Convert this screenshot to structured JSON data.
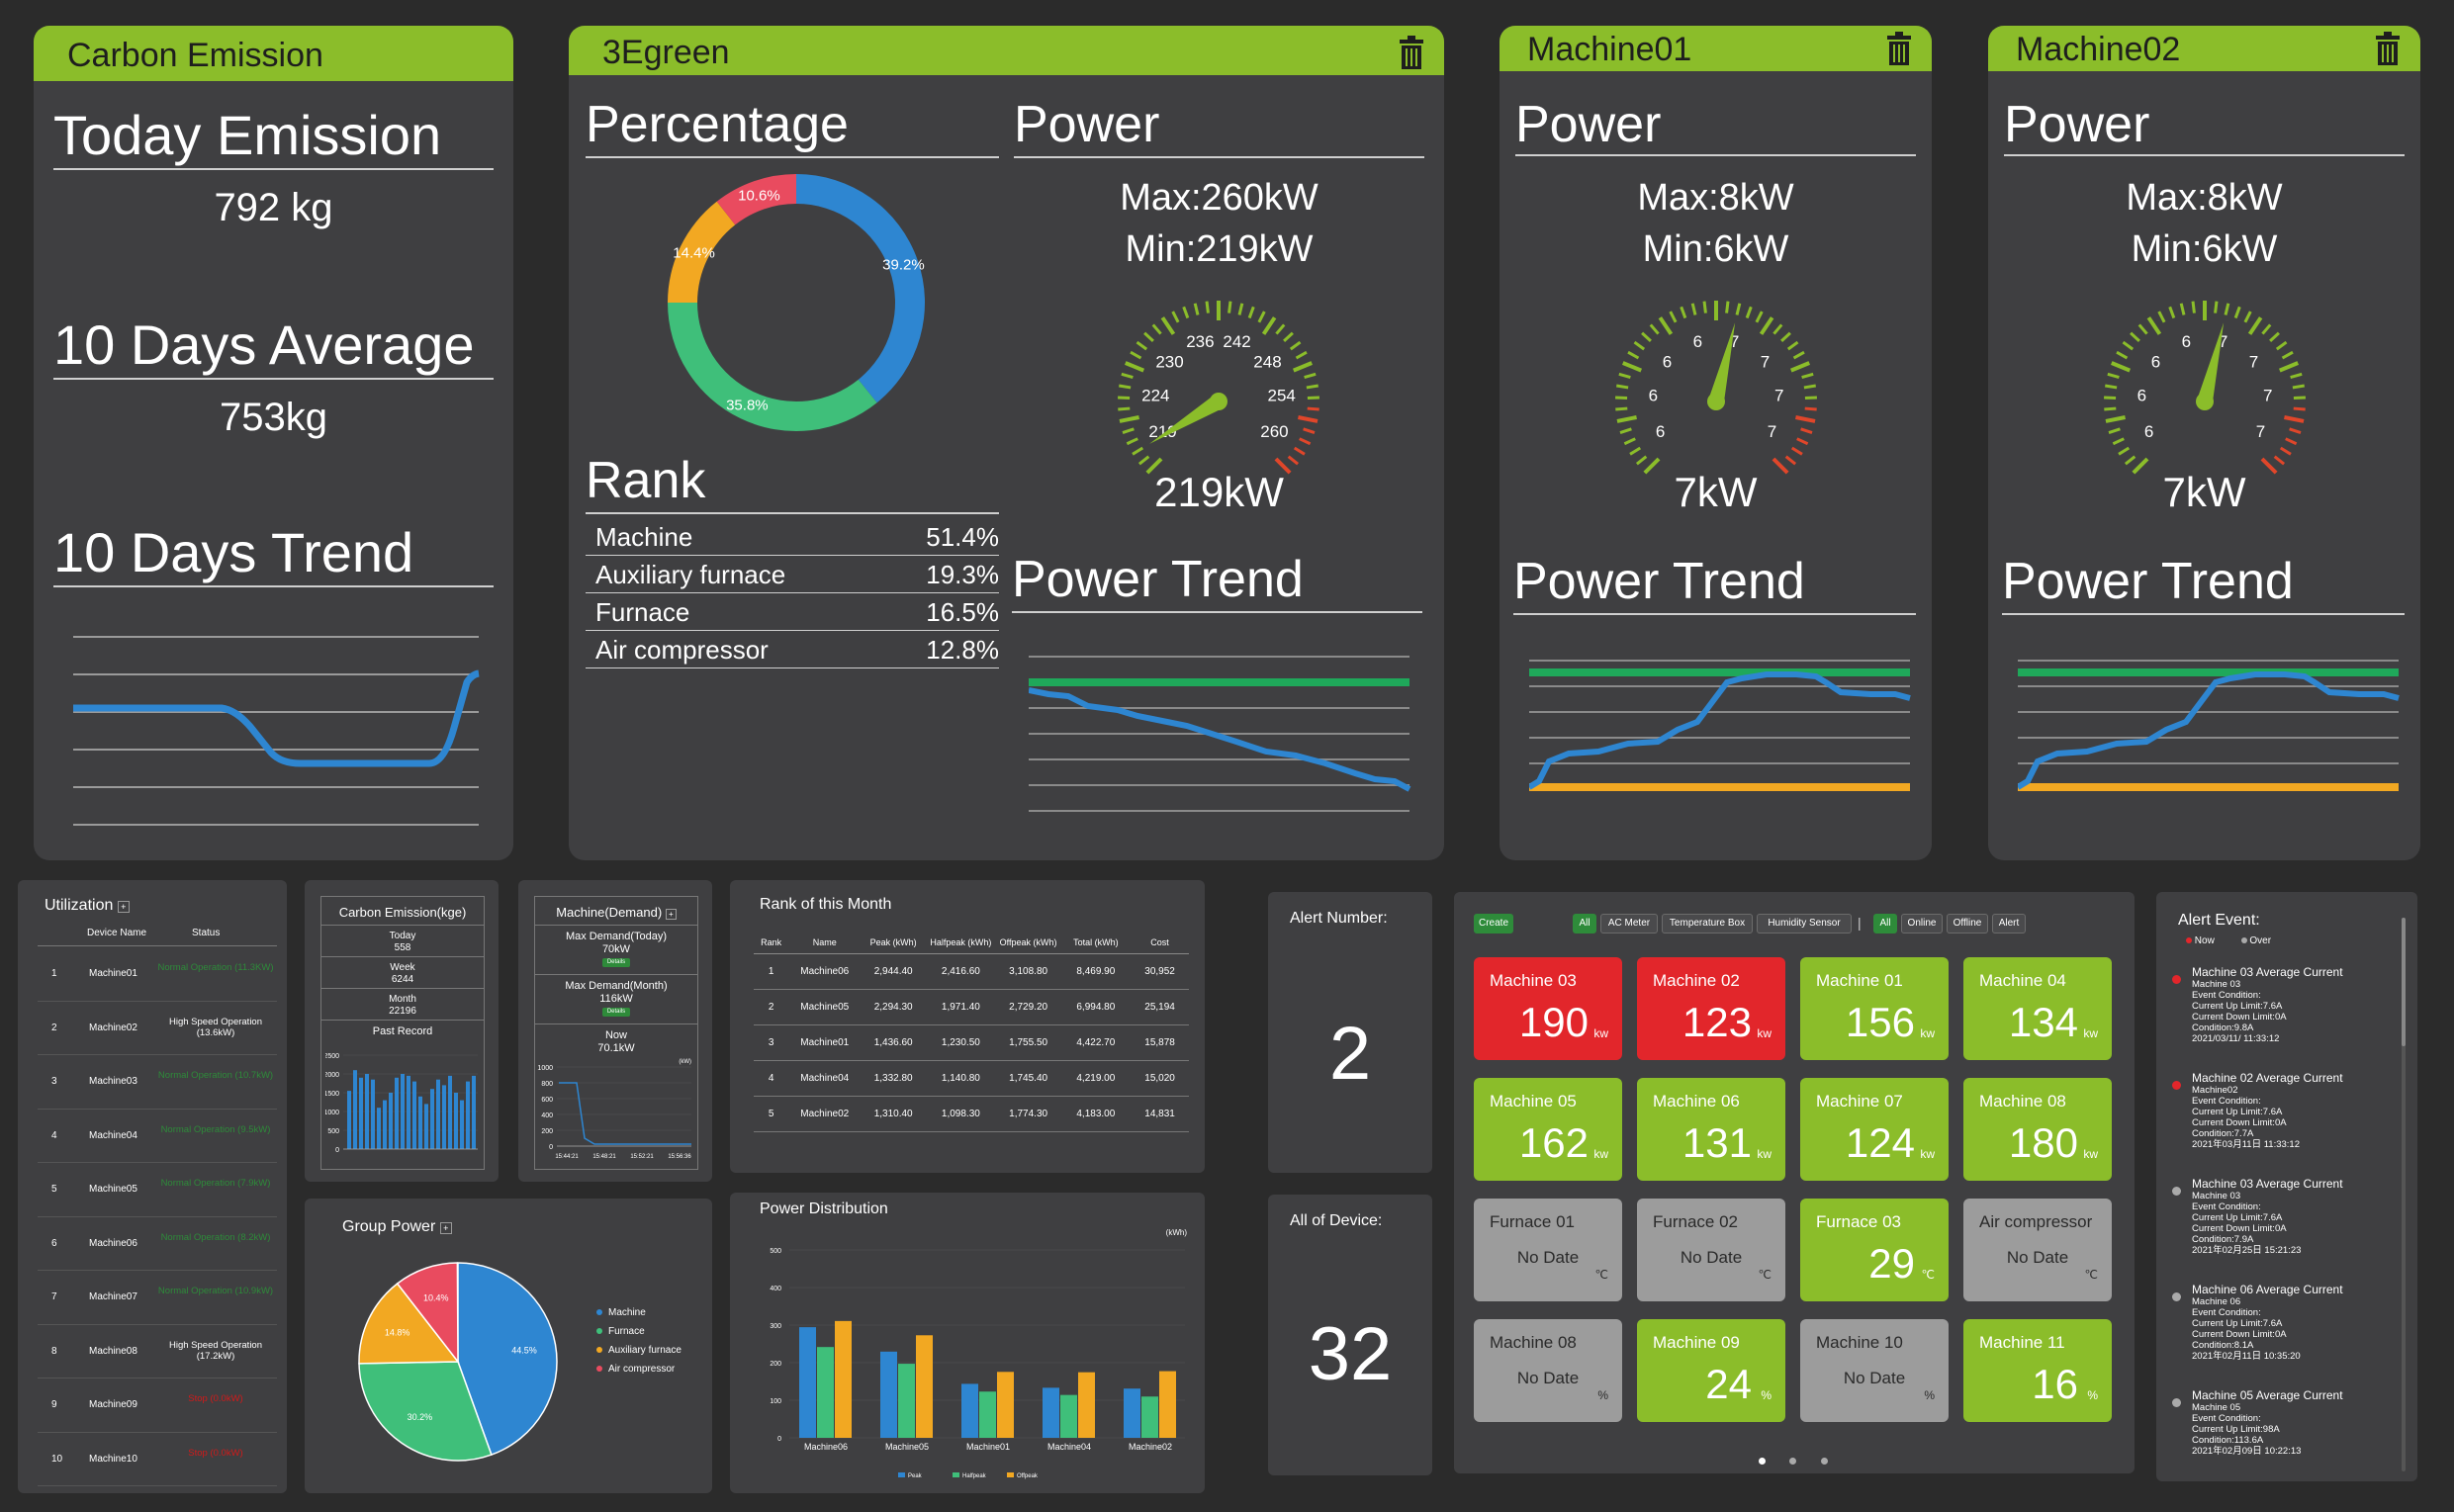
{
  "carbon": {
    "title": "Carbon Emission",
    "today_label": "Today Emission",
    "today_value": "792 kg",
    "avg_label": "10 Days Average",
    "avg_value": "753kg",
    "trend_label": "10 Days Trend"
  },
  "green": {
    "title": "3Egreen",
    "percentage_label": "Percentage",
    "donut": [
      {
        "label": "39.2%",
        "value": 39.2,
        "color": "#2e86d1"
      },
      {
        "label": "35.8%",
        "value": 35.8,
        "color": "#3fbf7a"
      },
      {
        "label": "14.4%",
        "value": 14.4,
        "color": "#f2a822"
      },
      {
        "label": "10.6%",
        "value": 10.6,
        "color": "#e94b5f"
      }
    ],
    "rank_label": "Rank",
    "rank": [
      {
        "name": "Machine",
        "pct": "51.4%"
      },
      {
        "name": "Auxiliary furnace",
        "pct": "19.3%"
      },
      {
        "name": "Furnace",
        "pct": "16.5%"
      },
      {
        "name": "Air compressor",
        "pct": "12.8%"
      }
    ],
    "power_label": "Power",
    "max": "Max:260kW",
    "min": "Min:219kW",
    "gauge_ticks": [
      "219",
      "224",
      "230",
      "236",
      "242",
      "248",
      "254",
      "260"
    ],
    "gauge_value": "219kW",
    "gauge_level": 0.05,
    "trend_label": "Power Trend"
  },
  "machine01": {
    "title": "Machine01",
    "power_label": "Power",
    "max": "Max:8kW",
    "min": "Min:6kW",
    "gauge_ticks": [
      "6",
      "6",
      "6",
      "6",
      "7",
      "7",
      "7",
      "7"
    ],
    "gauge_value": "7kW",
    "gauge_level": 0.55,
    "trend_label": "Power Trend"
  },
  "machine02": {
    "title": "Machine02",
    "power_label": "Power",
    "max": "Max:8kW",
    "min": "Min:6kW",
    "gauge_ticks": [
      "6",
      "6",
      "6",
      "6",
      "7",
      "7",
      "7",
      "7"
    ],
    "gauge_value": "7kW",
    "gauge_level": 0.55,
    "trend_label": "Power Trend"
  },
  "utilization": {
    "title": "Utilization",
    "col_device": "Device Name",
    "col_status": "Status",
    "rows": [
      {
        "no": "1",
        "name": "Machine01",
        "status": "Normal Operation (11.3KW)",
        "color": "#2e8b3a"
      },
      {
        "no": "2",
        "name": "Machine02",
        "status": "High Speed Operation (13.6kW)",
        "color": "#ffffff"
      },
      {
        "no": "3",
        "name": "Machine03",
        "status": "Normal Operation (10.7kW)",
        "color": "#2e8b3a"
      },
      {
        "no": "4",
        "name": "Machine04",
        "status": "Normal Operation (9.5kW)",
        "color": "#2e8b3a"
      },
      {
        "no": "5",
        "name": "Machine05",
        "status": "Normal Operation (7.9kW)",
        "color": "#2e8b3a"
      },
      {
        "no": "6",
        "name": "Machine06",
        "status": "Normal Operation (8.2kW)",
        "color": "#2e8b3a"
      },
      {
        "no": "7",
        "name": "Machine07",
        "status": "Normal Operation (10.9kW)",
        "color": "#2e8b3a"
      },
      {
        "no": "8",
        "name": "Machine08",
        "status": "High Speed Operation (17.2kW)",
        "color": "#ffffff"
      },
      {
        "no": "9",
        "name": "Machine09",
        "status": "Stop (0.0kW)",
        "color": "#d11a1a"
      },
      {
        "no": "10",
        "name": "Machine10",
        "status": "Stop (0.0kW)",
        "color": "#d11a1a"
      }
    ]
  },
  "ce_kge": {
    "title": "Carbon Emission(kge)",
    "today_label": "Today",
    "today": "558",
    "week_label": "Week",
    "week": "6244",
    "month_label": "Month",
    "month": "22196",
    "past": "Past Record",
    "yticks": [
      "2500",
      "2000",
      "1500",
      "1000",
      "500",
      "0"
    ]
  },
  "demand": {
    "title": "Machine(Demand)",
    "today_label": "Max Demand(Today)",
    "today": "70kW",
    "month_label": "Max Demand(Month)",
    "month": "116kW",
    "details": "Details",
    "now_label": "Now",
    "now": "70.1kW",
    "unit": "(kW)",
    "yticks": [
      "1000",
      "800",
      "600",
      "400",
      "200",
      "0"
    ],
    "xticks": [
      "15:44:21",
      "15:48:21",
      "15:52:21",
      "15:56:36"
    ]
  },
  "rank_month": {
    "title": "Rank of this Month",
    "headers": [
      "Rank",
      "Name",
      "Peak (kWh)",
      "Halfpeak (kWh)",
      "Offpeak (kWh)",
      "Total (kWh)",
      "Cost"
    ],
    "rows": [
      [
        "1",
        "Machine06",
        "2,944.40",
        "2,416.60",
        "3,108.80",
        "8,469.90",
        "30,952"
      ],
      [
        "2",
        "Machine05",
        "2,294.30",
        "1,971.40",
        "2,729.20",
        "6,994.80",
        "25,194"
      ],
      [
        "3",
        "Machine01",
        "1,436.60",
        "1,230.50",
        "1,755.50",
        "4,422.70",
        "15,878"
      ],
      [
        "4",
        "Machine04",
        "1,332.80",
        "1,140.80",
        "1,745.40",
        "4,219.00",
        "15,020"
      ],
      [
        "5",
        "Machine02",
        "1,310.40",
        "1,098.30",
        "1,774.30",
        "4,183.00",
        "14,831"
      ]
    ]
  },
  "group_power": {
    "title": "Group Power",
    "legend": [
      "Machine",
      "Furnace",
      "Auxiliary furnace",
      "Air compressor"
    ],
    "slices": [
      {
        "label": "44.5%",
        "value": 44.5,
        "color": "#2e86d1"
      },
      {
        "label": "30.2%",
        "value": 30.2,
        "color": "#3fbf7a"
      },
      {
        "label": "14.8%",
        "value": 14.8,
        "color": "#f2a822"
      },
      {
        "label": "10.4%",
        "value": 10.4,
        "color": "#e94b5f"
      }
    ]
  },
  "power_dist": {
    "title": "Power Distribution",
    "unit": "(kWh)",
    "yticks": [
      "500",
      "400",
      "300",
      "200",
      "100",
      "0"
    ],
    "legend": [
      "Peak",
      "Halfpeak",
      "Offpeak"
    ]
  },
  "alerts": {
    "number_label": "Alert Number:",
    "number": "2",
    "device_label": "All of Device:",
    "device_count": "32"
  },
  "tiles": {
    "buttons": [
      "Create",
      "All",
      "AC Meter",
      "Temperature Box",
      "Humidity Sensor",
      "|",
      "All",
      "Online",
      "Offline",
      "Alert"
    ],
    "items": [
      {
        "name": "Machine 03",
        "value": "190",
        "unit": "kw",
        "color": "#e2262b"
      },
      {
        "name": "Machine 02",
        "value": "123",
        "unit": "kw",
        "color": "#e2262b"
      },
      {
        "name": "Machine 01",
        "value": "156",
        "unit": "kw",
        "color": "#8bbd2a"
      },
      {
        "name": "Machine 04",
        "value": "134",
        "unit": "kw",
        "color": "#8bbd2a"
      },
      {
        "name": "Machine 05",
        "value": "162",
        "unit": "kw",
        "color": "#8bbd2a"
      },
      {
        "name": "Machine 06",
        "value": "131",
        "unit": "kw",
        "color": "#8bbd2a"
      },
      {
        "name": "Machine 07",
        "value": "124",
        "unit": "kw",
        "color": "#8bbd2a"
      },
      {
        "name": "Machine 08",
        "value": "180",
        "unit": "kw",
        "color": "#8bbd2a"
      },
      {
        "name": "Furnace 01",
        "value": "No Date",
        "unit": "℃",
        "color": "#9c9c9c"
      },
      {
        "name": "Furnace 02",
        "value": "No Date",
        "unit": "℃",
        "color": "#9c9c9c"
      },
      {
        "name": "Furnace 03",
        "value": "29",
        "unit": "℃",
        "color": "#8bbd2a"
      },
      {
        "name": "Air compressor",
        "value": "No Date",
        "unit": "℃",
        "color": "#9c9c9c"
      },
      {
        "name": "Machine 08",
        "value": "No Date",
        "unit": "%",
        "color": "#9c9c9c"
      },
      {
        "name": "Machine 09",
        "value": "24",
        "unit": "%",
        "color": "#8bbd2a"
      },
      {
        "name": "Machine 10",
        "value": "No Date",
        "unit": "%",
        "color": "#9c9c9c"
      },
      {
        "name": "Machine 11",
        "value": "16",
        "unit": "%",
        "color": "#8bbd2a"
      }
    ]
  },
  "alert_event": {
    "title": "Alert Event:",
    "legend_now": "Now",
    "legend_over": "Over",
    "events": [
      {
        "head": "Machine 03  Average Current",
        "lines": [
          "Machine 03",
          "Event Condition:",
          "Current Up Limit:7.6A",
          "Current Down Limit:0A",
          "Condition:9.8A",
          "2021/03/11/  11:33:12"
        ],
        "now": true
      },
      {
        "head": "Machine 02  Average Current",
        "lines": [
          "Machine02",
          "Event Condition:",
          "Current Up Limit:7.6A",
          "Current Down Limit:0A",
          "Condition:7.7A",
          "2021年03月11日  11:33:12"
        ],
        "now": true
      },
      {
        "head": "Machine 03  Average Current",
        "lines": [
          "Machine 03",
          "Event Condition:",
          "Current Up Limit:7.6A",
          "Current Down Limit:0A",
          "Condition:7.9A",
          "2021年02月25日  15:21:23"
        ],
        "now": false
      },
      {
        "head": "Machine 06  Average Current",
        "lines": [
          "Machine 06",
          "Event Condition:",
          "Current Up Limit:7.6A",
          "Current Down Limit:0A",
          "Condition:8.1A",
          "2021年02月11日  10:35:20"
        ],
        "now": false
      },
      {
        "head": "Machine 05  Average Current",
        "lines": [
          "Machine 05",
          "Event Condition:",
          "Current Up Limit:98A",
          "Condition:113.6A",
          "2021年02月09日  10:22:13"
        ],
        "now": false
      }
    ]
  }
}
